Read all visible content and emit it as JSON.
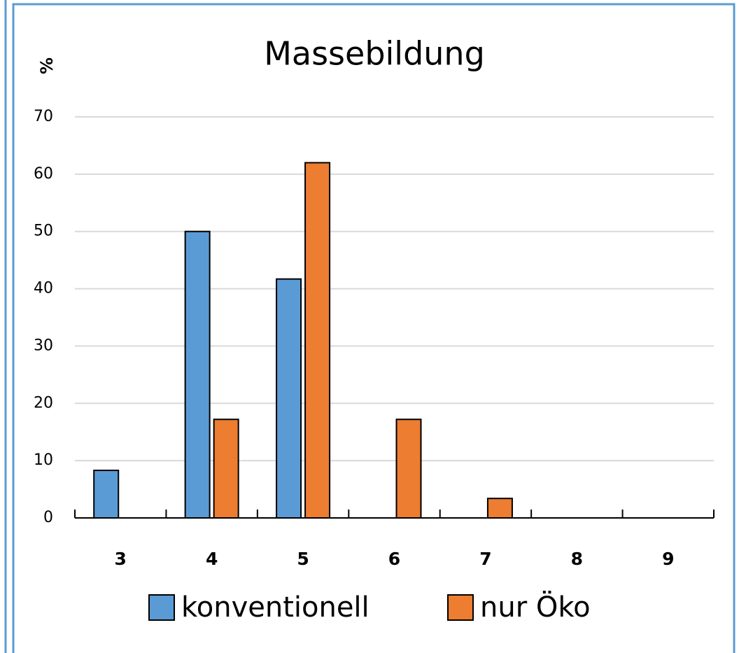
{
  "chart_data": {
    "type": "bar",
    "title": "Massebildung",
    "y_label": "%",
    "categories": [
      "3",
      "4",
      "5",
      "6",
      "7",
      "8",
      "9"
    ],
    "series": [
      {
        "name": "konventionell",
        "color": "#5b9bd5",
        "values": [
          8.3,
          50,
          41.7,
          0,
          0,
          0,
          0
        ]
      },
      {
        "name": "nur Öko",
        "color": "#ed7d31",
        "values": [
          0,
          17.2,
          62,
          17.2,
          3.4,
          0,
          0
        ]
      }
    ],
    "ylim": [
      0,
      70
    ],
    "yticks": [
      0,
      10,
      20,
      30,
      40,
      50,
      60,
      70
    ],
    "grid": true,
    "legend": "bottom"
  }
}
